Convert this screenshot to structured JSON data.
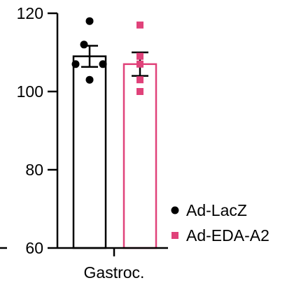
{
  "chart_data": {
    "type": "bar",
    "categories": [
      "Gastroc."
    ],
    "ylim": [
      60,
      120
    ],
    "yticks": [
      60,
      80,
      100,
      120
    ],
    "grid": false,
    "legend_position": "right",
    "series": [
      {
        "name": "Ad-LacZ",
        "color": "#000000",
        "marker": "circle",
        "mean": 109,
        "error": 2.7,
        "points": [
          118,
          112,
          107,
          107,
          103
        ]
      },
      {
        "name": "Ad-EDA-A2",
        "color": "#e0427a",
        "marker": "square",
        "mean": 107,
        "error": 3,
        "points": [
          117,
          109,
          107,
          103,
          100
        ]
      }
    ]
  }
}
